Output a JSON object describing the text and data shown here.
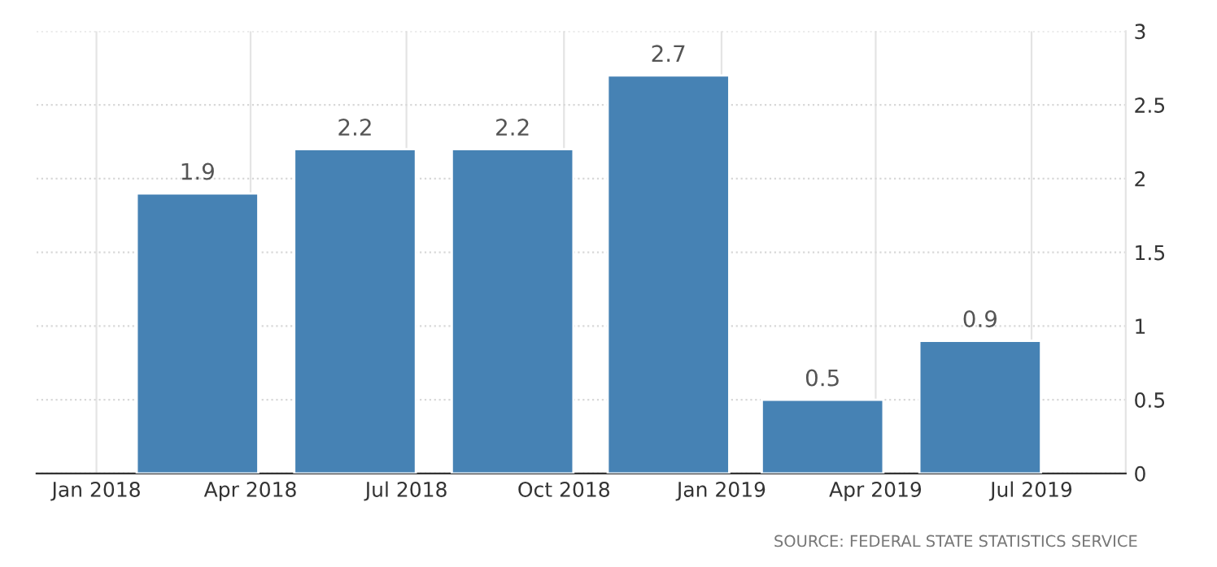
{
  "chart_data": {
    "type": "bar",
    "x": [
      "2018-03",
      "2018-06",
      "2018-09",
      "2018-12",
      "2019-03",
      "2019-06"
    ],
    "values": [
      1.9,
      2.2,
      2.2,
      2.7,
      0.5,
      0.9
    ],
    "color": "#4682b4",
    "data_labels": true,
    "xlim": [
      "2017-11-27",
      "2019-08-25"
    ],
    "xticks": [
      {
        "value": "2018-01",
        "label": "Jan 2018"
      },
      {
        "value": "2018-04",
        "label": "Apr 2018"
      },
      {
        "value": "2018-07",
        "label": "Jul 2018"
      },
      {
        "value": "2018-10",
        "label": "Oct 2018"
      },
      {
        "value": "2019-01",
        "label": "Jan 2019"
      },
      {
        "value": "2019-04",
        "label": "Apr 2019"
      },
      {
        "value": "2019-07",
        "label": "Jul 2019"
      }
    ],
    "ylim": [
      0,
      3
    ],
    "yticks": [
      0,
      0.5,
      1,
      1.5,
      2,
      2.5,
      3
    ],
    "grid": true,
    "annotations": [
      "SOURCE: FEDERAL STATE STATISTICS SERVICE"
    ]
  }
}
